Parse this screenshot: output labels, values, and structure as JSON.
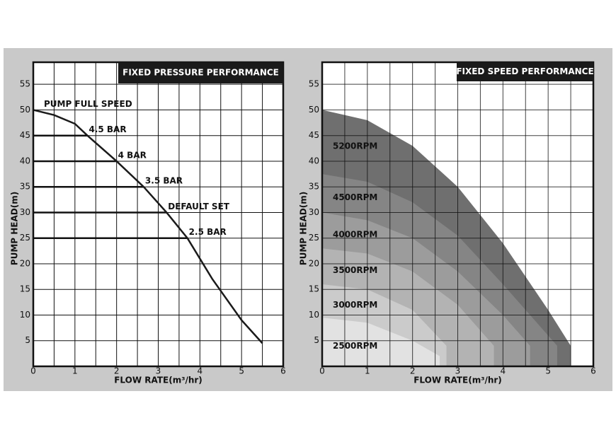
{
  "chart_data": [
    {
      "type": "line",
      "title": "FIXED PRESSURE PERFORMANCE",
      "xlabel": "FLOW RATE(m³/hr)",
      "ylabel": "PUMP HEAD(m)",
      "x": [
        0,
        0.5,
        1,
        1.3,
        2,
        2.65,
        3.2,
        3.7,
        4.3,
        5,
        5.5
      ],
      "series": [
        {
          "name": "PUMP FULL SPEED",
          "color": "#1a1a1a",
          "values": [
            50,
            49,
            47.3,
            45,
            40,
            35,
            30,
            25,
            17,
            9,
            4.5
          ]
        }
      ],
      "pressure_settings": [
        {
          "label": "4.5 BAR",
          "value": 45,
          "x_end": 1.3
        },
        {
          "label": "4 BAR",
          "value": 40,
          "x_end": 2
        },
        {
          "label": "3.5 BAR",
          "value": 35,
          "x_end": 2.65
        },
        {
          "label": "DEFAULT SET",
          "value": 30,
          "x_end": 3.2
        },
        {
          "label": "2.5 BAR",
          "value": 25,
          "x_end": 3.7
        }
      ],
      "xlim": [
        0,
        6
      ],
      "ylim": [
        0,
        59.3
      ],
      "xticks": [
        0,
        1,
        2,
        3,
        4,
        5,
        6
      ],
      "yticks": [
        5,
        10,
        15,
        20,
        25,
        30,
        35,
        40,
        45,
        50,
        55
      ],
      "xgrid": [
        0.5,
        1,
        1.5,
        2,
        2.5,
        3,
        3.5,
        4,
        4.5,
        5,
        5.5
      ],
      "ygrid": [
        5,
        10,
        15,
        20,
        25,
        30,
        35,
        40,
        45,
        50,
        55
      ]
    },
    {
      "type": "area",
      "title": "FIXED SPEED PERFORMANCE",
      "xlabel": "FLOW RATE(m³/hr)",
      "ylabel": "PUMP HEAD(m)",
      "series": [
        {
          "name": "5200RPM",
          "color": "#6f6f6f",
          "x": [
            0,
            1,
            2,
            3,
            4,
            5,
            5.5
          ],
          "values": [
            50,
            48,
            43,
            35,
            24,
            11,
            4
          ]
        },
        {
          "name": "4500RPM",
          "color": "#858585",
          "x": [
            0,
            1,
            2,
            3,
            4,
            5.2
          ],
          "values": [
            37.5,
            36,
            32,
            25.5,
            16,
            4
          ]
        },
        {
          "name": "4000RPM",
          "color": "#9c9c9c",
          "x": [
            0,
            1,
            2,
            3,
            4,
            4.6
          ],
          "values": [
            30,
            28.5,
            25,
            18.5,
            10,
            4
          ]
        },
        {
          "name": "3500RPM",
          "color": "#b3b3b3",
          "x": [
            0,
            1,
            2,
            3,
            3.8
          ],
          "values": [
            23,
            22,
            18.5,
            12,
            4
          ]
        },
        {
          "name": "3000RPM",
          "color": "#cbcbcb",
          "x": [
            0,
            1,
            2,
            2.75
          ],
          "values": [
            16,
            15,
            11,
            4
          ]
        },
        {
          "name": "2500RPM",
          "color": "#e2e2e2",
          "x": [
            0,
            1,
            2,
            2.6
          ],
          "values": [
            9.5,
            8.5,
            5,
            2
          ]
        }
      ],
      "xlim": [
        0,
        6
      ],
      "ylim": [
        0,
        59.3
      ],
      "xticks": [
        0,
        1,
        2,
        3,
        4,
        5,
        6
      ],
      "yticks": [
        5,
        10,
        15,
        20,
        25,
        30,
        35,
        40,
        45,
        50,
        55
      ],
      "xgrid": [
        0.5,
        1,
        1.5,
        2,
        2.5,
        3,
        3.5,
        4,
        4.5,
        5,
        5.5
      ],
      "ygrid": [
        5,
        10,
        15,
        20,
        25,
        30,
        35,
        40,
        45,
        50,
        55
      ]
    }
  ]
}
